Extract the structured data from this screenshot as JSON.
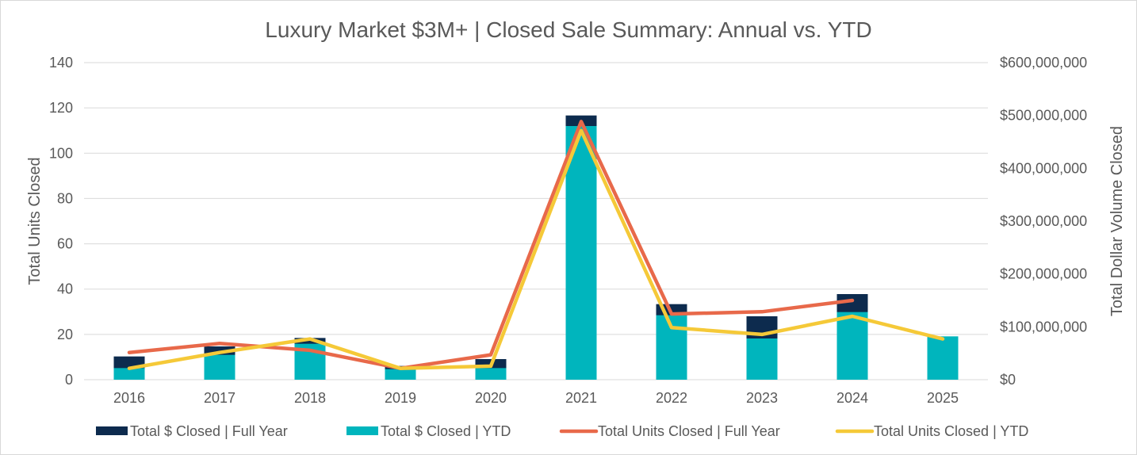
{
  "chart_data": {
    "type": "bar",
    "title": "Luxury Market $3M+ | Closed Sale Summary: Annual vs. YTD",
    "categories": [
      "2016",
      "2017",
      "2018",
      "2019",
      "2020",
      "2021",
      "2022",
      "2023",
      "2024",
      "2025"
    ],
    "y_left": {
      "label": "Total Units Closed",
      "range": [
        0,
        140
      ],
      "ticks": [
        "0",
        "20",
        "40",
        "60",
        "80",
        "100",
        "120",
        "140"
      ]
    },
    "y_right": {
      "label": "Total Dollar Volume Closed",
      "range": [
        0,
        600000000
      ],
      "ticks": [
        "$0",
        "$100,000,000",
        "$200,000,000",
        "$300,000,000",
        "$400,000,000",
        "$500,000,000",
        "$600,000,000"
      ]
    },
    "gridlines": true,
    "legend_position": "bottom",
    "series": [
      {
        "name": "Total $ Closed | Full Year",
        "type": "bar",
        "axis": "right",
        "color": "#0d2b4e",
        "values": [
          44000000,
          63000000,
          79000000,
          26000000,
          39000000,
          500000000,
          143000000,
          120000000,
          162000000,
          null
        ]
      },
      {
        "name": "Total $ Closed | YTD",
        "type": "bar",
        "axis": "right",
        "color": "#00b5bd",
        "values": [
          22000000,
          47000000,
          68000000,
          20000000,
          22000000,
          480000000,
          122000000,
          78000000,
          128000000,
          82000000
        ]
      },
      {
        "name": "Total Units Closed | Full Year",
        "type": "line",
        "axis": "left",
        "color": "#e8694a",
        "values": [
          12,
          16,
          13,
          5,
          11,
          114,
          29,
          30,
          35,
          null
        ]
      },
      {
        "name": "Total Units Closed | YTD",
        "type": "line",
        "axis": "left",
        "color": "#f5c938",
        "values": [
          5,
          12,
          18,
          5,
          6,
          110,
          23,
          20,
          28,
          18
        ]
      }
    ]
  }
}
